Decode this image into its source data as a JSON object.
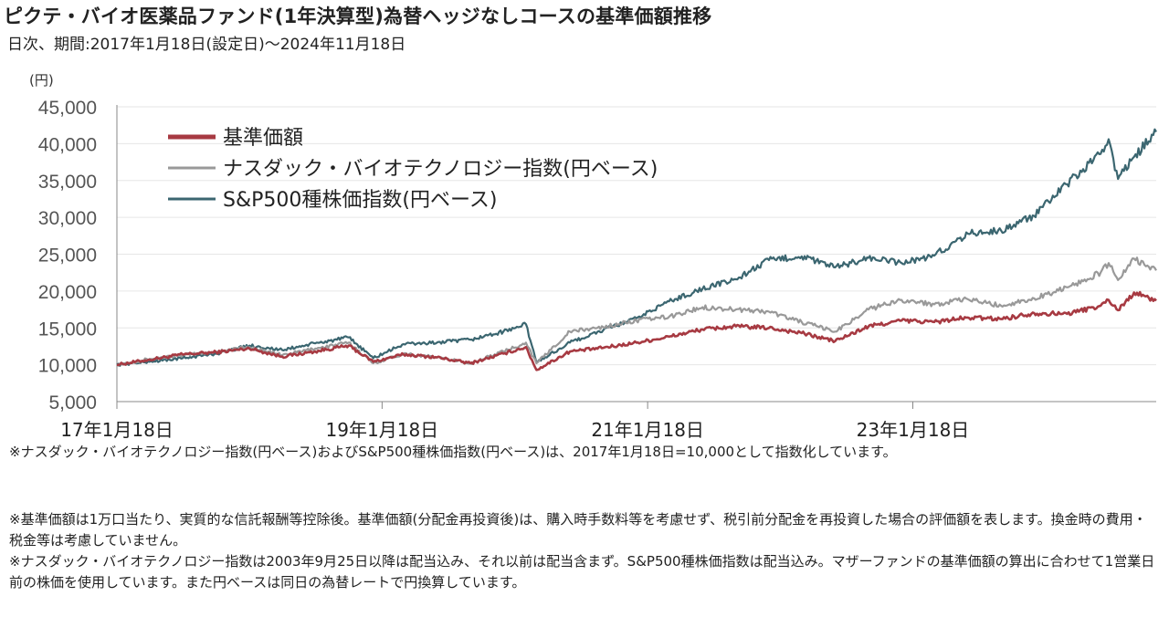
{
  "title": "ピクテ・バイオ医薬品ファンド(1年決算型)為替ヘッジなしコースの基準価額推移",
  "subtitle": "日次、期間:2017年1月18日(設定日)～2024年11月18日",
  "chart_data": {
    "type": "line",
    "ylabel": "(円)",
    "ylim": [
      5000,
      45000
    ],
    "yticks": [
      "5,000",
      "10,000",
      "15,000",
      "20,000",
      "25,000",
      "30,000",
      "35,000",
      "40,000",
      "45,000"
    ],
    "ytick_values": [
      5000,
      10000,
      15000,
      20000,
      25000,
      30000,
      35000,
      40000,
      45000
    ],
    "xlim": [
      "2017-01-18",
      "2024-11-18"
    ],
    "xticks": [
      "17年1月18日",
      "19年1月18日",
      "21年1月18日",
      "23年1月18日"
    ],
    "xtick_dates": [
      "2017-01-18",
      "2019-01-18",
      "2021-01-18",
      "2023-01-18"
    ],
    "grid": "horizontal",
    "legend_position": "top-left",
    "x": [
      "2017-01-18",
      "2017-04-18",
      "2017-07-18",
      "2017-10-18",
      "2018-01-18",
      "2018-04-18",
      "2018-07-18",
      "2018-10-18",
      "2018-12-25",
      "2019-03-18",
      "2019-06-18",
      "2019-09-18",
      "2019-12-18",
      "2020-02-18",
      "2020-03-18",
      "2020-06-18",
      "2020-09-18",
      "2020-12-18",
      "2021-03-18",
      "2021-06-18",
      "2021-09-18",
      "2021-12-18",
      "2022-03-18",
      "2022-06-18",
      "2022-09-18",
      "2022-12-18",
      "2023-03-18",
      "2023-06-18",
      "2023-09-18",
      "2023-12-18",
      "2024-03-18",
      "2024-06-18",
      "2024-07-10",
      "2024-08-05",
      "2024-09-18",
      "2024-11-18"
    ],
    "series": [
      {
        "name": "基準価額",
        "color": "#a73a42",
        "values": [
          10000,
          10700,
          11400,
          11700,
          12200,
          11100,
          11800,
          12600,
          10400,
          11400,
          11000,
          10200,
          11500,
          12400,
          9300,
          11800,
          12300,
          13000,
          13800,
          14800,
          15200,
          15000,
          14300,
          13200,
          15200,
          16000,
          15800,
          16400,
          16200,
          17000,
          16900,
          18000,
          18800,
          17400,
          19800,
          18700
        ]
      },
      {
        "name": "ナスダック・バイオテクノロジー指数(円ベース)",
        "color": "#999999",
        "values": [
          10000,
          10800,
          11300,
          11800,
          12400,
          11300,
          12200,
          13000,
          10200,
          11500,
          11000,
          10200,
          11800,
          13000,
          10200,
          14500,
          15100,
          16000,
          16500,
          17800,
          17500,
          17200,
          15800,
          14500,
          17500,
          18800,
          18200,
          18900,
          18000,
          19000,
          20500,
          22500,
          23800,
          21500,
          24400,
          22800
        ]
      },
      {
        "name": "S&P500種株価指数(円ベース)",
        "color": "#3b6670",
        "values": [
          10000,
          10400,
          10900,
          11500,
          12600,
          12000,
          12900,
          13700,
          10900,
          12800,
          13000,
          13400,
          14500,
          15500,
          10300,
          13000,
          14700,
          16300,
          18600,
          20300,
          21600,
          24200,
          24700,
          23200,
          24500,
          23800,
          24800,
          27800,
          28200,
          30200,
          34500,
          38600,
          40600,
          35200,
          38200,
          41600
        ]
      }
    ]
  },
  "note_index": "※ナスダック・バイオテクノロジー指数(円ベース)およびS&P500種株価指数(円ベース)は、2017年1月18日=10,000として指数化しています。",
  "notes": [
    "※基準価額は1万口当たり、実質的な信託報酬等控除後。基準価額(分配金再投資後)は、購入時手数料等を考慮せず、税引前分配金を再投資した場合の評価額を表します。換金時の費用・税金等は考慮していません。",
    "※ナスダック・バイオテクノロジー指数は2003年9月25日以降は配当込み、それ以前は配当含まず。S&P500種株価指数は配当込み。マザーファンドの基準価額の算出に合わせて1営業日前の株価を使用しています。また円ベースは同日の為替レートで円換算しています。"
  ]
}
